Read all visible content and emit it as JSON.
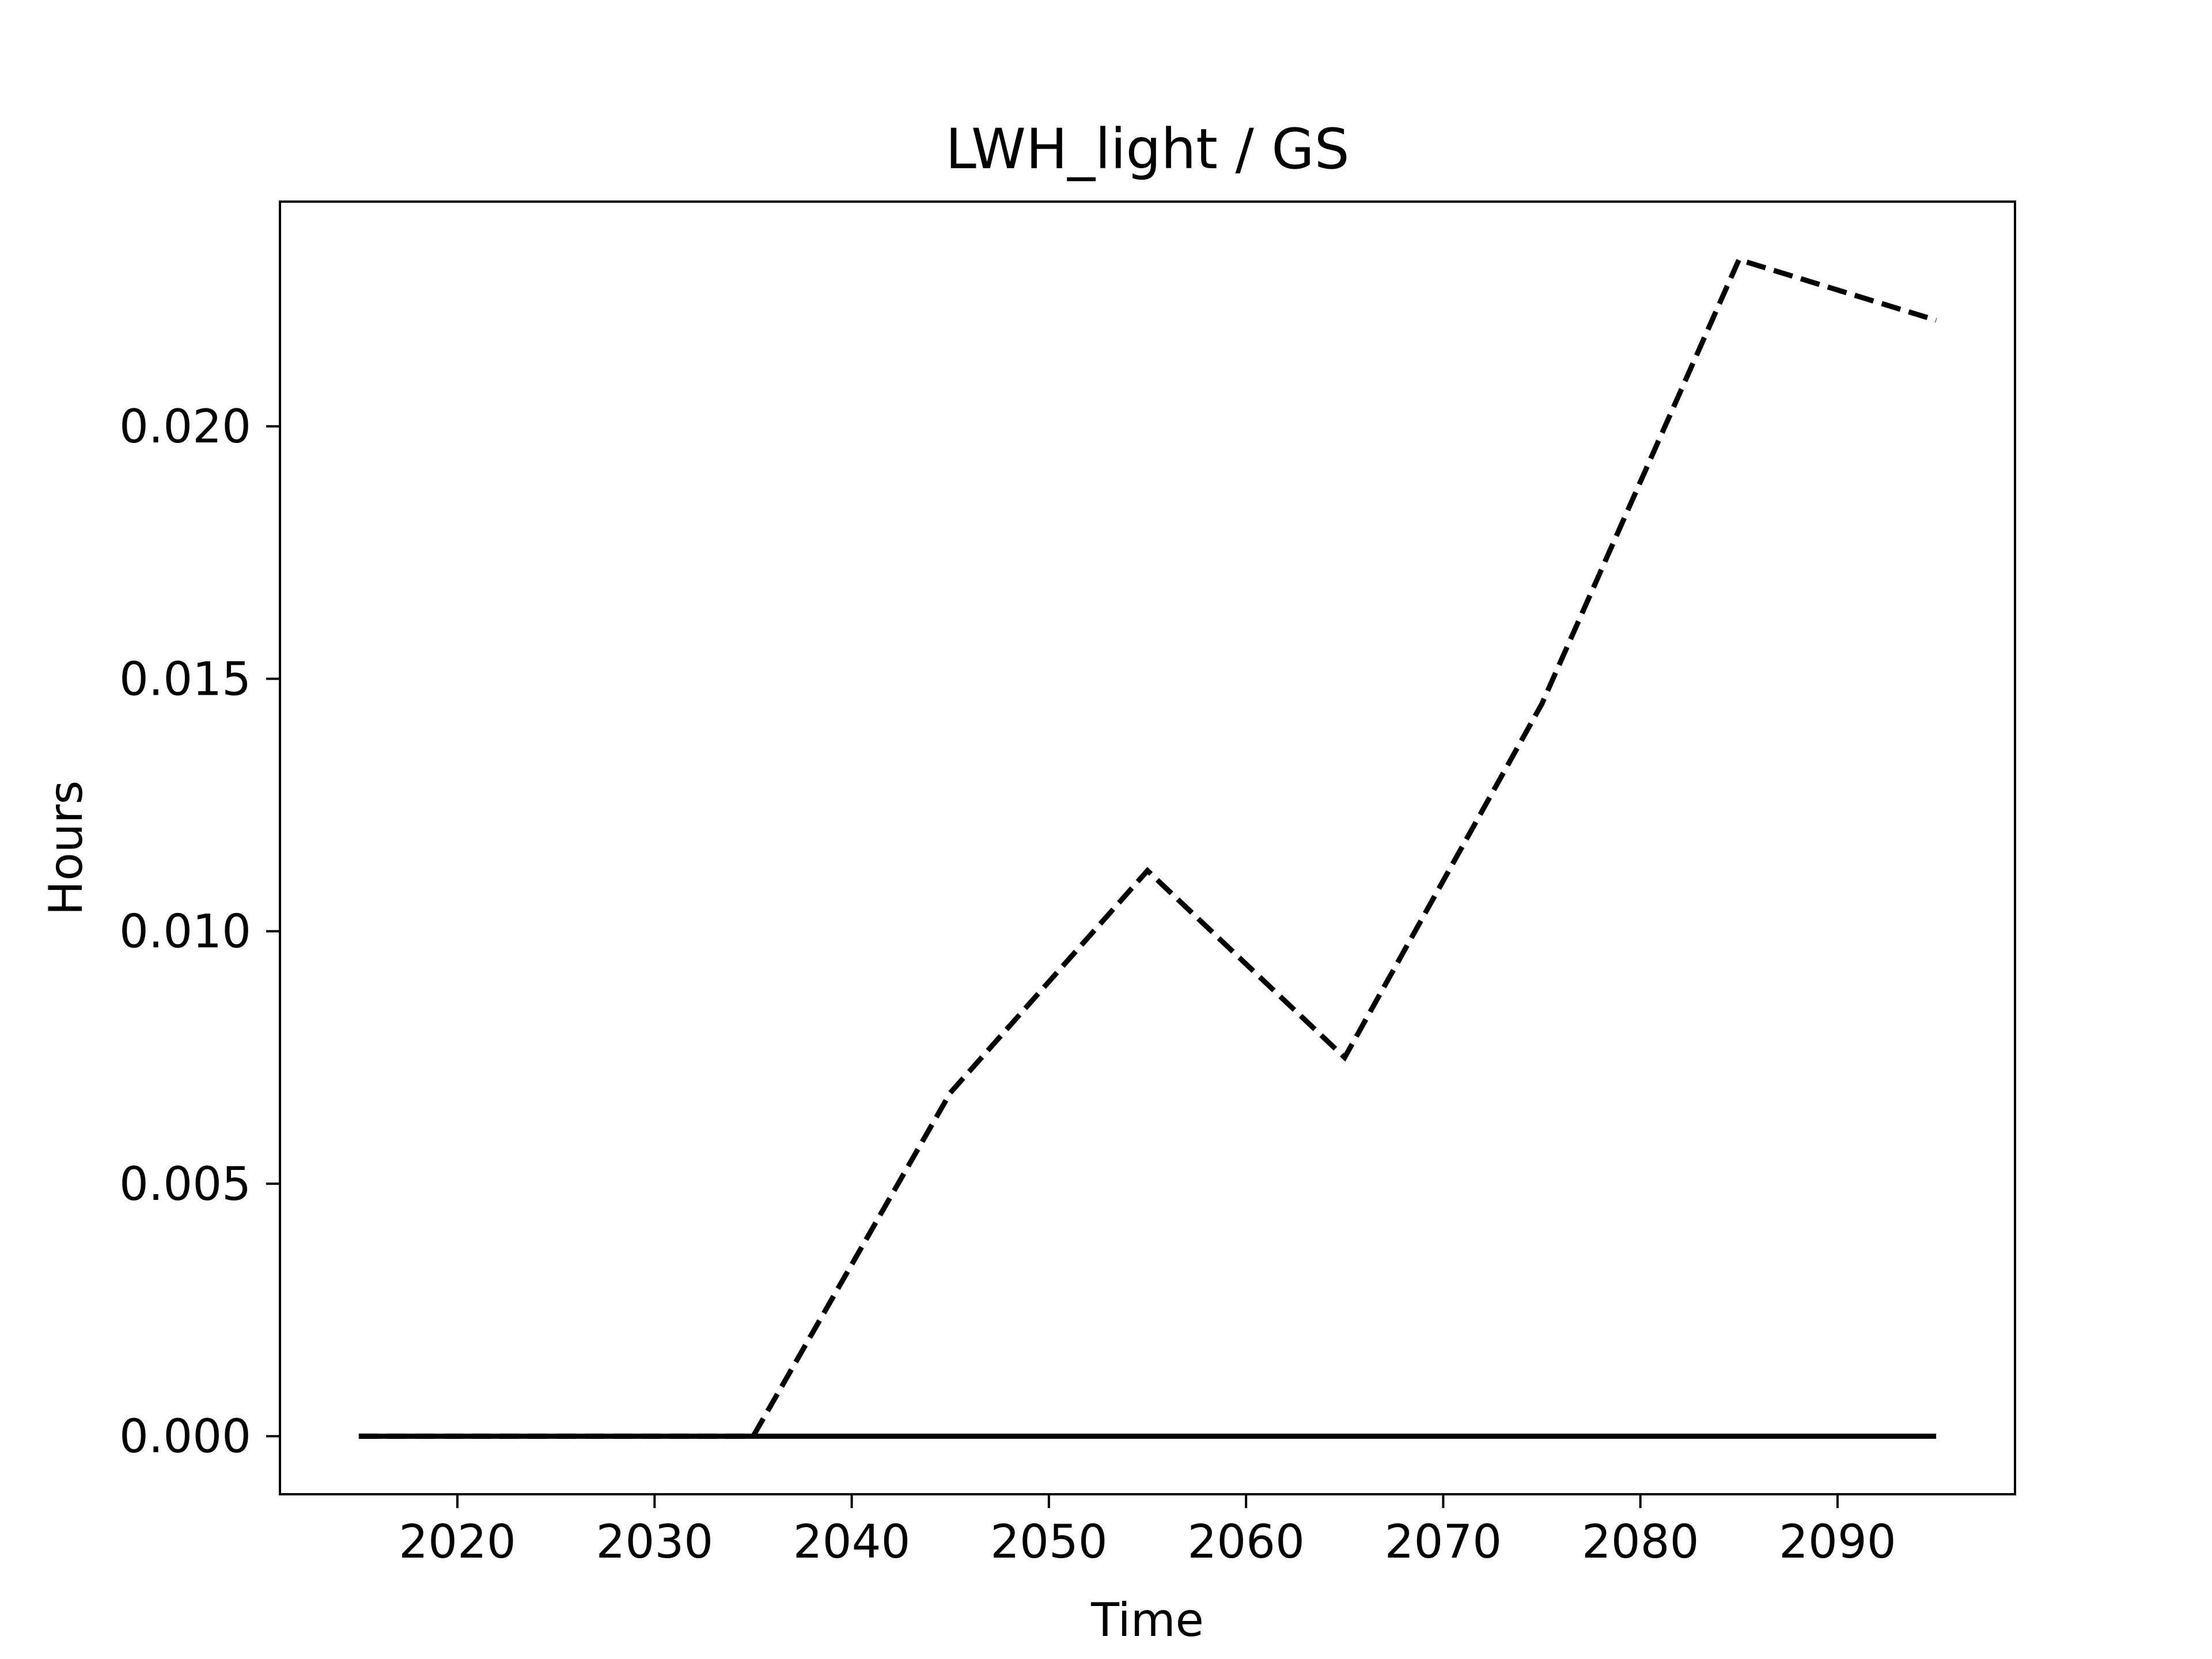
{
  "chart_data": {
    "type": "line",
    "title": "LWH_light / GS",
    "xlabel": "Time",
    "ylabel": "Hours",
    "xlim": [
      2011,
      2099
    ],
    "ylim": [
      -0.00115,
      0.02445
    ],
    "xticks": [
      2020,
      2030,
      2040,
      2050,
      2060,
      2070,
      2080,
      2090
    ],
    "yticks": [
      0.0,
      0.005,
      0.01,
      0.015,
      0.02
    ],
    "ytick_labels": [
      "0.000",
      "0.005",
      "0.010",
      "0.015",
      "0.020"
    ],
    "grid": false,
    "series": [
      {
        "style": "dashed",
        "color": "#000000",
        "x": [
          2015,
          2025,
          2035,
          2045,
          2055,
          2065,
          2075,
          2085,
          2095
        ],
        "y": [
          0.0,
          0.0,
          0.0,
          0.0068,
          0.0112,
          0.0075,
          0.0145,
          0.0233,
          0.0221
        ]
      },
      {
        "style": "solid",
        "color": "#000000",
        "x": [
          2015,
          2025,
          2035,
          2045,
          2055,
          2065,
          2075,
          2085,
          2095
        ],
        "y": [
          0.0,
          0.0,
          0.0,
          0.0,
          0.0,
          0.0,
          0.0,
          0.0,
          0.0
        ]
      }
    ]
  }
}
